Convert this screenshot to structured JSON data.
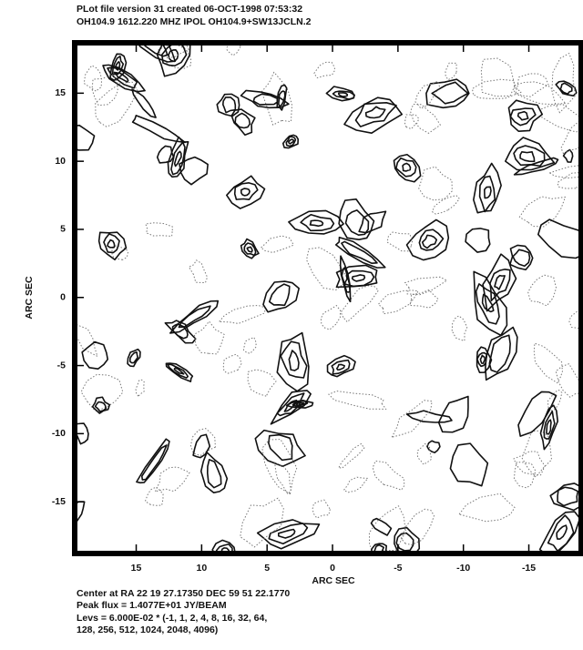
{
  "chart_data": {
    "type": "contour",
    "title": "PLot file version 31  created 06-OCT-1998 07:53:32",
    "subtitle": "OH104.9  1612.220 MHZ  IPOL  OH104.9+SW13JCLN.2",
    "x_label": "ARC SEC",
    "y_label": "ARC SEC",
    "xlim": [
      19.7,
      -19.0
    ],
    "xticks": [
      15,
      10,
      5,
      0,
      -5,
      -10,
      -15
    ],
    "ylim": [
      -18.8,
      18.7
    ],
    "yticks": [
      15,
      10,
      5,
      0,
      -5,
      -10,
      -15
    ],
    "footer": [
      "Center at RA 22 19 27.17350  DEC 59 51 22.1770",
      "Peak flux = 1.4077E+01  JY/BEAM",
      "Levs = 6.000E-02 * (-1, 1, 2, 4, 8, 16, 32, 64,",
      "128, 256, 512, 1024, 2048, 4096)"
    ]
  }
}
